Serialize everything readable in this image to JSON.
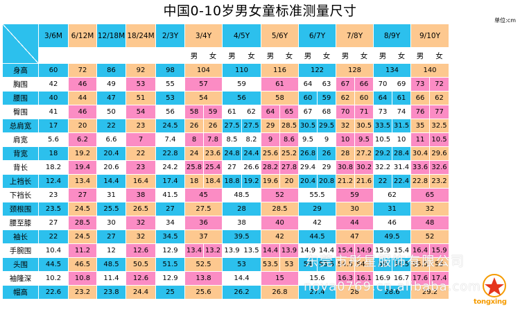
{
  "title": "中国0-10岁男女童标准测量尺寸",
  "unit_label": "单位:cm",
  "colors": {
    "blue": "#2cc0ed",
    "orange": "#fdc88f",
    "pink": "#fb8cc4",
    "white": "#ffffff"
  },
  "sizes": [
    "3/6M",
    "6/12M",
    "12/18M",
    "18/24M",
    "2/3Y",
    "3/4Y",
    "4/5Y",
    "5/6Y",
    "6/7Y",
    "7/8Y",
    "8/9Y",
    "9/10Y"
  ],
  "sex_labels": {
    "male": "男",
    "female": "女"
  },
  "rows": [
    {
      "label": "身高",
      "values": [
        "60",
        "72",
        "86",
        "92",
        "98",
        "104",
        "110",
        "116",
        "122",
        "128",
        "134",
        "140"
      ]
    },
    {
      "label": "胸围",
      "values": [
        "42",
        "46",
        "49",
        "53",
        "55",
        "57",
        "59",
        "61",
        [
          "64",
          "63"
        ],
        [
          "67",
          "66"
        ],
        [
          "70",
          "69"
        ],
        [
          "73",
          "72"
        ]
      ]
    },
    {
      "label": "腰围",
      "values": [
        "40",
        "44",
        "47",
        "51",
        "53",
        "54",
        "56",
        "58",
        [
          "60",
          "59"
        ],
        [
          "62",
          "60"
        ],
        [
          "64",
          "61"
        ],
        [
          "66",
          "62"
        ]
      ]
    },
    {
      "label": "臀围",
      "values": [
        "41",
        "46",
        "50",
        "54",
        "56",
        [
          "58",
          "59"
        ],
        [
          "61",
          "62"
        ],
        [
          "64",
          "65"
        ],
        [
          "67",
          "68"
        ],
        [
          "70",
          "71"
        ],
        [
          "73",
          "74"
        ],
        [
          "76",
          "77"
        ]
      ]
    },
    {
      "label": "总肩宽",
      "values": [
        "17",
        "20",
        "22",
        "23",
        "24.5",
        [
          "26",
          "26"
        ],
        [
          "27.5",
          "27.5"
        ],
        [
          "29",
          "28.5"
        ],
        [
          "30.5",
          "29.5"
        ],
        [
          "32",
          "30.5"
        ],
        [
          "33.5",
          "31.5"
        ],
        [
          "35",
          "32.5"
        ]
      ]
    },
    {
      "label": "肩宽",
      "values": [
        "5.6",
        "6.2",
        "6.6",
        "7",
        "7.4",
        [
          "8",
          "7.8"
        ],
        [
          "8.5",
          "8.2"
        ],
        [
          "9",
          "8.6"
        ],
        [
          "9.5",
          "9"
        ],
        [
          "10",
          "9.5"
        ],
        [
          "10.5",
          "10"
        ],
        [
          "11",
          "10.5"
        ]
      ]
    },
    {
      "label": "背宽",
      "values": [
        "18",
        "19.2",
        "20.4",
        "22",
        "22.8",
        [
          "24",
          "23.6"
        ],
        [
          "24.8",
          "24.4"
        ],
        [
          "25.6",
          "25.2"
        ],
        [
          "26.8",
          "26"
        ],
        [
          "28",
          "27.2"
        ],
        [
          "29.2",
          "28.4"
        ],
        [
          "30.4",
          "29.6"
        ]
      ]
    },
    {
      "label": "背长",
      "values": [
        "18.2",
        "19.4",
        "20.6",
        "23",
        "24.2",
        [
          "25.8",
          "25.4"
        ],
        [
          "27",
          "26.6"
        ],
        [
          "28.2",
          "27.8"
        ],
        [
          "29.4",
          "29"
        ],
        [
          "30.8",
          "30.2"
        ],
        [
          "32.2",
          "31.4"
        ],
        [
          "33.6",
          "32.6"
        ]
      ]
    },
    {
      "label": "上裆长",
      "values": [
        "12.4",
        "13.4",
        "14.4",
        "16.4",
        "17.4",
        [
          "18",
          "18.4"
        ],
        [
          "18.8",
          "19.2"
        ],
        [
          "19.6",
          "20"
        ],
        [
          "20.4",
          "20.8"
        ],
        [
          "21.2",
          "21.6"
        ],
        [
          "22",
          "22.4"
        ],
        [
          "22.8",
          "23.2"
        ]
      ]
    },
    {
      "label": "下裆长",
      "values": [
        "23",
        "27",
        "31",
        "38",
        "41.5",
        "45",
        "48.5",
        "52",
        "55.5",
        "59",
        "62",
        "65"
      ]
    },
    {
      "label": "颈根围",
      "values": [
        "23.5",
        "24.5",
        "25.5",
        "26.5",
        "27",
        "27.5",
        "28",
        "28.5",
        "29",
        "30",
        "31",
        "32"
      ]
    },
    {
      "label": "腰至膝",
      "values": [
        "27",
        "28.5",
        "30",
        "32",
        "34",
        "36",
        "38",
        "40",
        "42",
        "44",
        "46",
        "48"
      ]
    },
    {
      "label": "袖长",
      "values": [
        "22",
        "24.5",
        "27",
        "32",
        "34.5",
        "37",
        "39.5",
        "42",
        "44.5",
        "47",
        "49.5",
        "52"
      ]
    },
    {
      "label": "手腕围",
      "values": [
        "10.4",
        "11.2",
        "12",
        "12.6",
        "12.9",
        [
          "13.4",
          "13.2"
        ],
        [
          "13.9",
          "13.5"
        ],
        [
          "14.4",
          "13.9"
        ],
        [
          "14.9",
          "14.4"
        ],
        [
          "15.4",
          "14.9"
        ],
        [
          "15.9",
          "15.4"
        ],
        [
          "16.4",
          "15.9"
        ]
      ]
    },
    {
      "label": "头围",
      "values": [
        "44.5",
        "46.5",
        "48.5",
        "50.5",
        "51.5",
        "52.5",
        "53",
        [
          "53.5",
          "53"
        ],
        [
          "54",
          "53.5"
        ],
        [
          "54.5",
          "54.1"
        ],
        [
          "55",
          "54.5"
        ],
        [
          "55.5",
          "55"
        ]
      ]
    },
    {
      "label": "袖隆深",
      "values": [
        "10.2",
        "10.8",
        "11.4",
        "12.6",
        "12.9",
        "13.8",
        "14.4",
        "15",
        "15.6",
        [
          "16.3",
          "16.1"
        ],
        [
          "16.9",
          "16.7"
        ],
        [
          "17.6",
          "17.4"
        ]
      ]
    },
    {
      "label": "帽高",
      "values": [
        "22.6",
        "23.2",
        "23.8",
        "24.4",
        "25",
        "25.6",
        "26.2",
        "26.8",
        "27.4",
        "28",
        "28.6",
        "29.2"
      ]
    }
  ],
  "watermark": {
    "line1": "东莞市彤星服饰有限公司",
    "line2": "nova0769.cn.alibaba.com"
  },
  "logo_text": "tongxing"
}
